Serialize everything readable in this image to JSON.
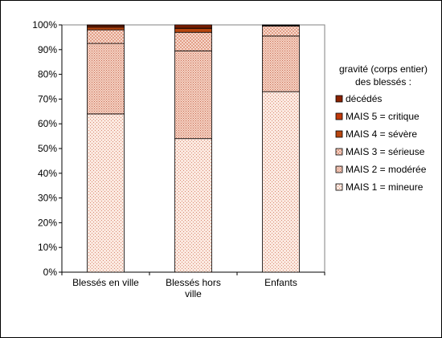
{
  "chart_data": {
    "type": "bar",
    "stacked": true,
    "percent": true,
    "categories": [
      "Blessés en ville",
      "Blessés hors ville",
      "Enfants"
    ],
    "category_lines": [
      [
        "Blessés en ville"
      ],
      [
        "Blessés hors",
        "ville"
      ],
      [
        "Enfants"
      ]
    ],
    "ylim": [
      0,
      100
    ],
    "yticks": [
      0,
      10,
      20,
      30,
      40,
      50,
      60,
      70,
      80,
      90,
      100
    ],
    "ytick_labels": [
      "0%",
      "10%",
      "20%",
      "30%",
      "40%",
      "50%",
      "60%",
      "70%",
      "80%",
      "90%",
      "100%"
    ],
    "grid": false,
    "legend_title": [
      "gravité (corps entier)",
      "des blessés :"
    ],
    "legend_position": "right",
    "series": [
      {
        "name": "MAIS 1 = mineure",
        "values": [
          64,
          54,
          73
        ],
        "color": "#fbe9e0",
        "dot": "#d98a74",
        "pattern": "dots"
      },
      {
        "name": "MAIS 2 = modérée",
        "values": [
          28.5,
          35.5,
          22.5
        ],
        "color": "#f5d3c4",
        "dot": "#c76a52",
        "pattern": "dense"
      },
      {
        "name": "MAIS 3 = sérieuse",
        "values": [
          5.5,
          7.5,
          4
        ],
        "color": "#eab09a",
        "dot": "#ffffff",
        "pattern": "checker"
      },
      {
        "name": "MAIS 4 = sévère",
        "values": [
          1,
          1.5,
          0.3
        ],
        "color": "#b8460f",
        "dot": null,
        "pattern": "solid"
      },
      {
        "name": "MAIS 5 = critique",
        "values": [
          0.5,
          0.5,
          0.1
        ],
        "color": "#c0390a",
        "dot": null,
        "pattern": "solid"
      },
      {
        "name": "décédés",
        "values": [
          0.5,
          1,
          0.1
        ],
        "color": "#8b2200",
        "dot": null,
        "pattern": "solid"
      }
    ]
  }
}
